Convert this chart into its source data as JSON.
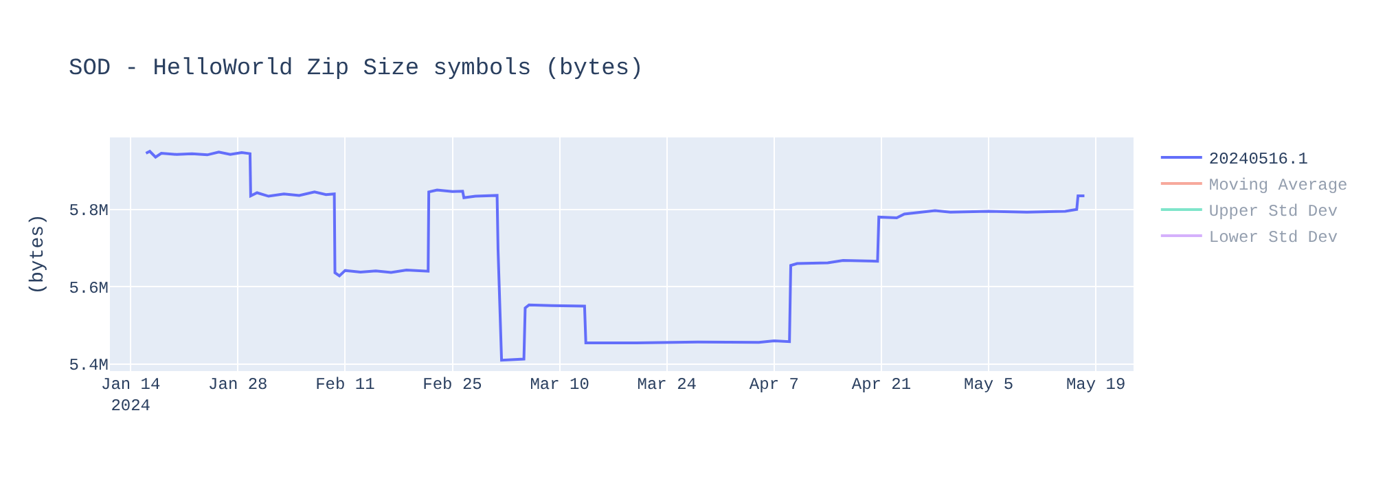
{
  "chart_data": {
    "type": "line",
    "title": "SOD - HelloWorld Zip Size symbols (bytes)",
    "ylabel": "(bytes)",
    "x": [
      "2024-01-16T00:00",
      "2024-01-16T12:00",
      "2024-01-17T06:00",
      "2024-01-18",
      "2024-01-20",
      "2024-01-22",
      "2024-01-24",
      "2024-01-25T12:00",
      "2024-01-27",
      "2024-01-28T12:00",
      "2024-01-29T14:00",
      "2024-01-29T16:00",
      "2024-01-30T12:00",
      "2024-02-01",
      "2024-02-03",
      "2024-02-05",
      "2024-02-07",
      "2024-02-08T12:00",
      "2024-02-09T14:00",
      "2024-02-09T16:00",
      "2024-02-10T06:00",
      "2024-02-11",
      "2024-02-13",
      "2024-02-15",
      "2024-02-17",
      "2024-02-19",
      "2024-02-21T20:00",
      "2024-02-21T22:00",
      "2024-02-23",
      "2024-02-25",
      "2024-02-26T08:00",
      "2024-02-26T12:00",
      "2024-02-28",
      "2024-03-01T20:00",
      "2024-03-01T23:00",
      "2024-03-02T10:00",
      "2024-03-05T08:00",
      "2024-03-05T12:00",
      "2024-03-06",
      "2024-03-09",
      "2024-03-13T06:00",
      "2024-03-13T10:00",
      "2024-03-20",
      "2024-03-28",
      "2024-04-05",
      "2024-04-07",
      "2024-04-09T00:00",
      "2024-04-09T04:00",
      "2024-04-10",
      "2024-04-14",
      "2024-04-16",
      "2024-04-20T12:00",
      "2024-04-20T16:00",
      "2024-04-23",
      "2024-04-24",
      "2024-04-28",
      "2024-04-30",
      "2024-05-05",
      "2024-05-10",
      "2024-05-15",
      "2024-05-16T12:00",
      "2024-05-16T16:00",
      "2024-05-17T12:00"
    ],
    "series": [
      {
        "name": "20240516.1",
        "color": "#636efa",
        "values": [
          5945000,
          5950000,
          5935000,
          5945000,
          5942000,
          5944000,
          5941000,
          5948000,
          5942000,
          5947000,
          5944000,
          5835000,
          5843000,
          5834000,
          5840000,
          5836000,
          5845000,
          5838000,
          5840000,
          5636000,
          5628000,
          5642000,
          5638000,
          5641000,
          5637000,
          5643000,
          5640000,
          5845000,
          5850000,
          5846000,
          5847000,
          5830000,
          5834000,
          5836000,
          5696000,
          5410000,
          5413000,
          5545000,
          5553000,
          5551000,
          5550000,
          5455000,
          5455000,
          5457000,
          5456000,
          5460000,
          5458000,
          5655000,
          5660000,
          5662000,
          5668000,
          5666000,
          5780000,
          5778000,
          5788000,
          5797000,
          5793000,
          5795000,
          5793000,
          5795000,
          5800000,
          5835000,
          5835000
        ]
      },
      {
        "name": "Moving Average",
        "color": "#ef553b",
        "values": [
          null,
          null,
          null,
          null,
          null,
          null,
          null,
          null,
          null,
          null,
          null,
          null,
          null,
          null,
          null,
          null,
          null,
          null,
          null,
          null,
          null,
          null,
          null,
          null,
          null,
          null,
          null,
          null,
          null,
          null,
          null,
          null,
          null,
          null,
          null,
          null,
          null,
          null,
          null,
          null,
          null,
          null,
          null,
          null,
          null,
          null,
          null,
          null,
          null,
          null,
          null,
          null,
          null,
          null,
          null,
          null,
          null,
          null,
          null,
          null,
          null,
          null,
          null
        ]
      },
      {
        "name": "Upper Std Dev",
        "color": "#00cc96",
        "values": [
          null,
          null,
          null,
          null,
          null,
          null,
          null,
          null,
          null,
          null,
          null,
          null,
          null,
          null,
          null,
          null,
          null,
          null,
          null,
          null,
          null,
          null,
          null,
          null,
          null,
          null,
          null,
          null,
          null,
          null,
          null,
          null,
          null,
          null,
          null,
          null,
          null,
          null,
          null,
          null,
          null,
          null,
          null,
          null,
          null,
          null,
          null,
          null,
          null,
          null,
          null,
          null,
          null,
          null,
          null,
          null,
          null,
          null,
          null,
          null,
          null,
          null,
          null
        ]
      },
      {
        "name": "Lower Std Dev",
        "color": "#ab63fa",
        "values": [
          null,
          null,
          null,
          null,
          null,
          null,
          null,
          null,
          null,
          null,
          null,
          null,
          null,
          null,
          null,
          null,
          null,
          null,
          null,
          null,
          null,
          null,
          null,
          null,
          null,
          null,
          null,
          null,
          null,
          null,
          null,
          null,
          null,
          null,
          null,
          null,
          null,
          null,
          null,
          null,
          null,
          null,
          null,
          null,
          null,
          null,
          null,
          null,
          null,
          null,
          null,
          null,
          null,
          null,
          null,
          null,
          null,
          null,
          null,
          null,
          null,
          null,
          null
        ]
      }
    ],
    "xlim": [
      "2024-01-11T07:00",
      "2024-05-23T22:00"
    ],
    "xticks": [
      {
        "value": "2024-01-14",
        "label": "Jan 14\n2024"
      },
      {
        "value": "2024-01-28",
        "label": "Jan 28"
      },
      {
        "value": "2024-02-11",
        "label": "Feb 11"
      },
      {
        "value": "2024-02-25",
        "label": "Feb 25"
      },
      {
        "value": "2024-03-10",
        "label": "Mar 10"
      },
      {
        "value": "2024-03-24",
        "label": "Mar 24"
      },
      {
        "value": "2024-04-07",
        "label": "Apr 7"
      },
      {
        "value": "2024-04-21",
        "label": "Apr 21"
      },
      {
        "value": "2024-05-05",
        "label": "May 5"
      },
      {
        "value": "2024-05-19",
        "label": "May 19"
      }
    ],
    "ylim": [
      5382000,
      5986000
    ],
    "yticks": [
      {
        "value": 5400000,
        "label": "5.4M"
      },
      {
        "value": 5600000,
        "label": "5.6M"
      },
      {
        "value": 5800000,
        "label": "5.8M"
      }
    ],
    "grid": true,
    "legend": "top right",
    "marker": "none",
    "line_style": "solid"
  }
}
